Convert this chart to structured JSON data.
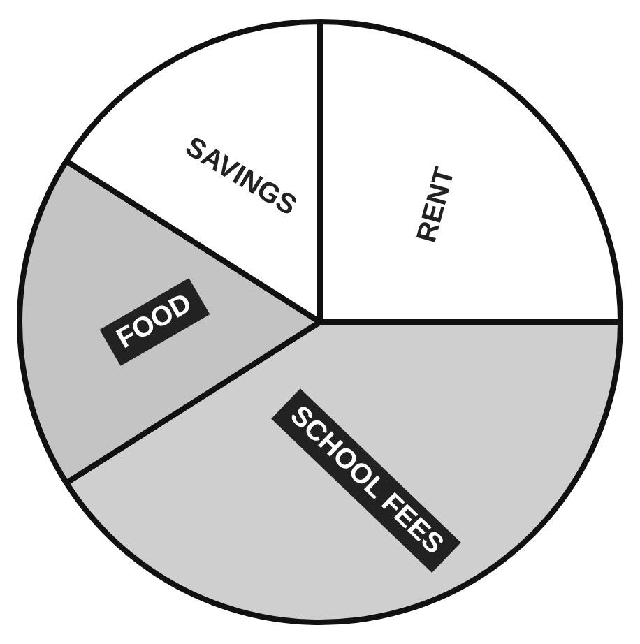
{
  "chart_data": {
    "type": "pie",
    "categories": [
      "RENT",
      "SCHOOL FEES",
      "FOOD",
      "SAVINGS"
    ],
    "values": [
      25,
      41,
      18,
      16
    ],
    "colors": [
      "#ffffff",
      "#cfcfcf",
      "#c4c4c4",
      "#ffffff"
    ],
    "legend": false
  }
}
